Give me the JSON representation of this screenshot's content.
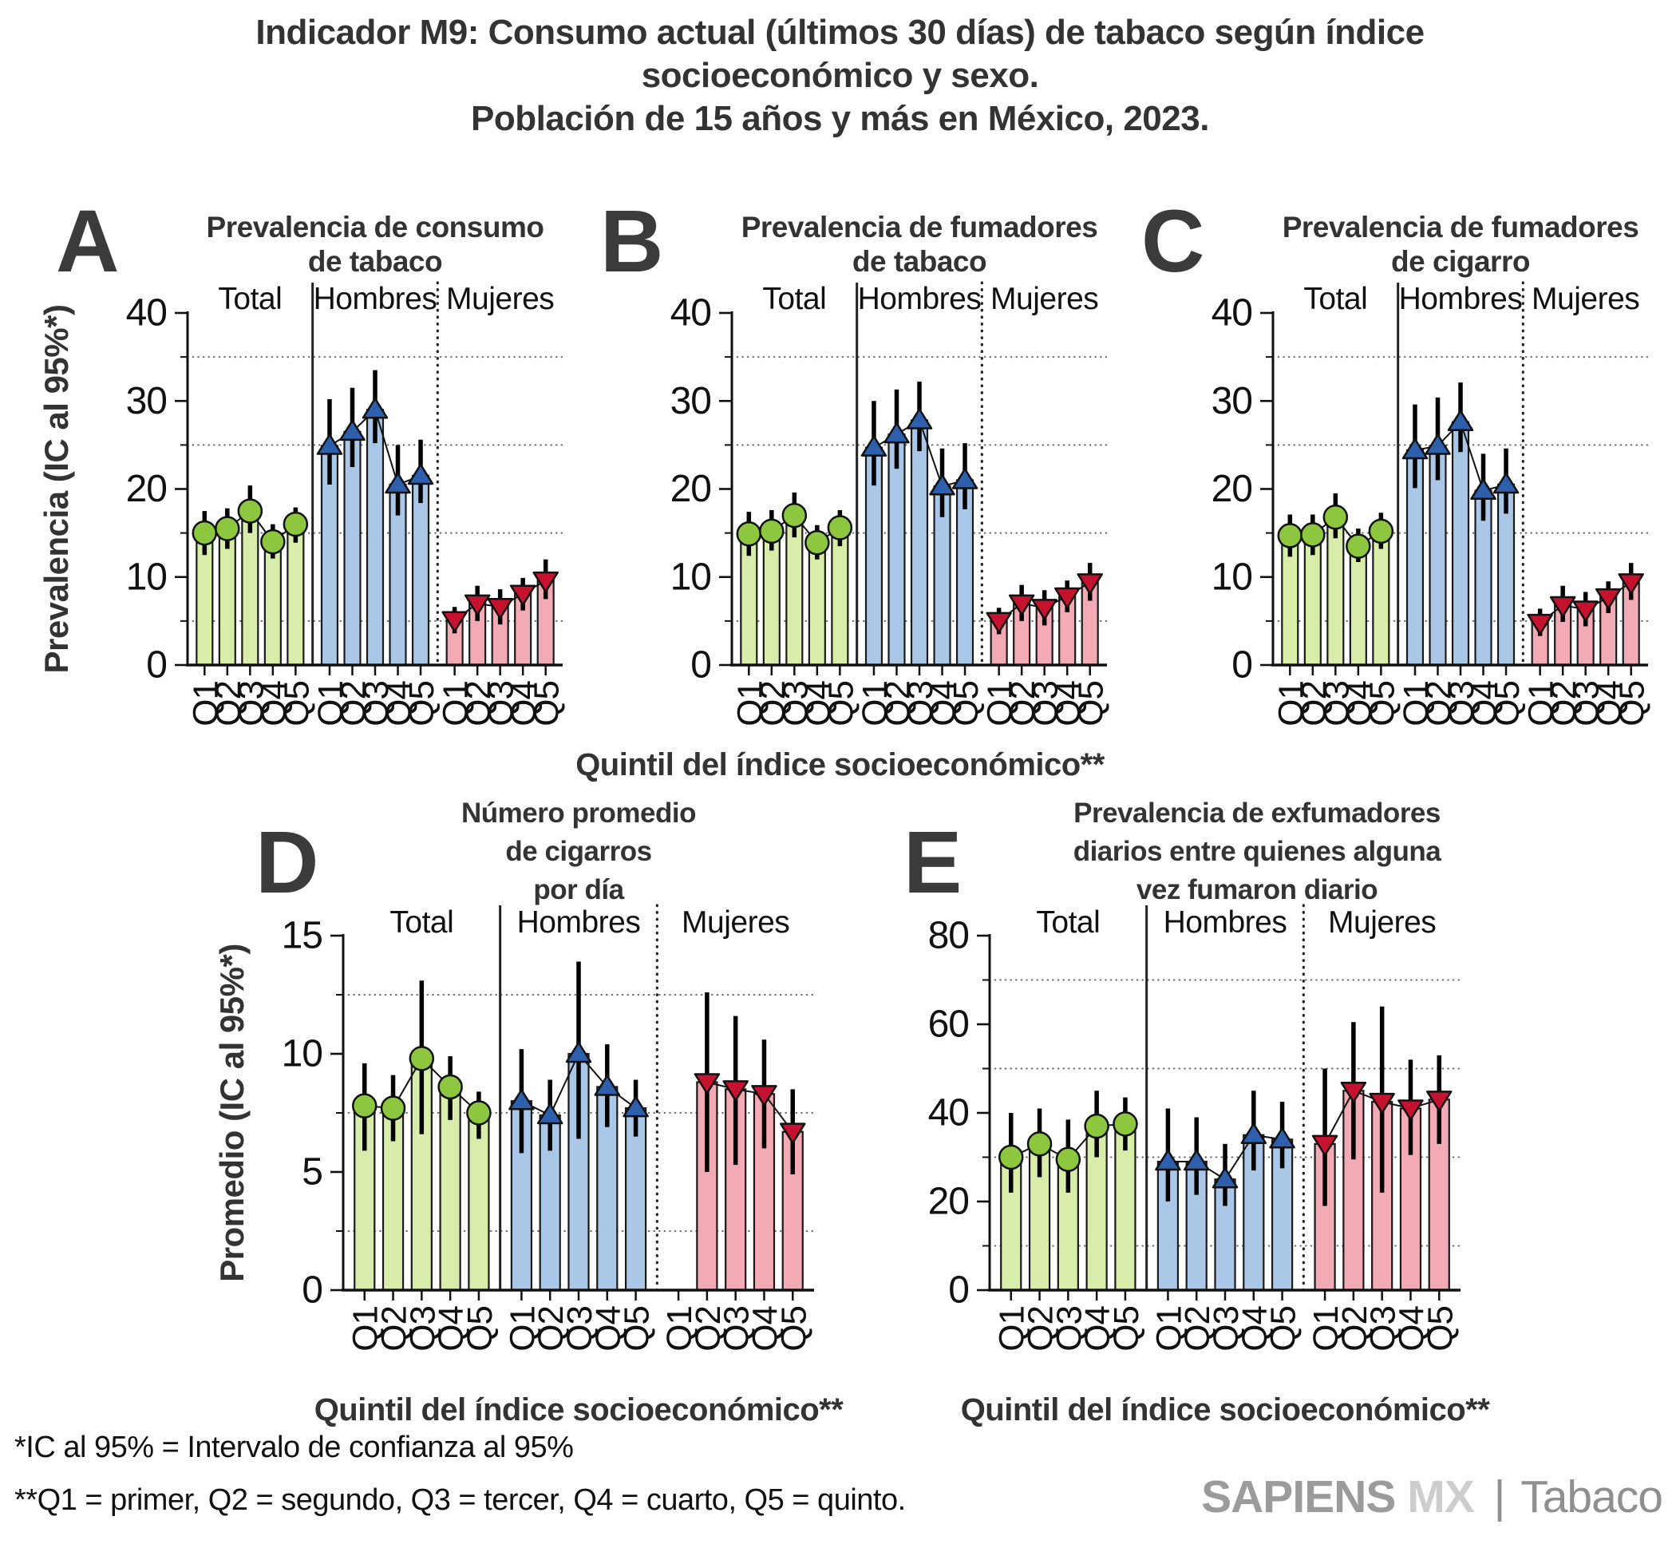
{
  "header": {
    "line1": "Indicador M9: Consumo actual (últimos 30 días) de tabaco según  índice",
    "line2": "socioeconómico y sexo.",
    "line3": "Población de 15 años y más en México, 2023."
  },
  "labels": {
    "xlabel": "Quintil del índice socioeconómico**"
  },
  "footnotes": {
    "ci": "*IC al 95% = Intervalo de confianza al 95%",
    "quintiles": "**Q1 = primer, Q2 = segundo, Q3 = tercer, Q4 = cuarto, Q5 = quinto."
  },
  "logo": {
    "sapiens": "SAPIENS",
    "mx": "MX",
    "separator": "|",
    "tabaco": "Tabaco"
  },
  "colors": {
    "text_dark": "#333333",
    "letter": "#3b3b3b",
    "axis": "#111111",
    "grid": "#666666",
    "total_bar": "#d9edaa",
    "total_marker": "#8dc63f",
    "hombres_bar": "#abc7e7",
    "hombres_marker": "#2d5fad",
    "mujeres_bar": "#f2abb4",
    "mujeres_marker": "#c4122f"
  },
  "chart_data": {
    "type": "bar",
    "categories": [
      "Q1",
      "Q2",
      "Q3",
      "Q4",
      "Q5"
    ],
    "group_names": [
      "Total",
      "Hombres",
      "Mujeres"
    ],
    "legend_position": "none",
    "grid": "minor-dotted-horizontal",
    "panels": [
      {
        "letter": "A",
        "title_lines": [
          "Prevalencia de consumo",
          "de tabaco"
        ],
        "ylabel": "Prevalencia (IC al 95%*)",
        "ylim": [
          0,
          40
        ],
        "yticks": [
          0,
          10,
          20,
          30,
          40
        ],
        "minor_gridlines": [
          5,
          15,
          25,
          35
        ],
        "series": [
          {
            "name": "Total",
            "marker": "circle",
            "values": [
              15.0,
              15.5,
              17.5,
              14.0,
              16.0
            ],
            "ci_low": [
              12.5,
              13.2,
              15.0,
              12.1,
              13.9
            ],
            "ci_high": [
              17.5,
              17.8,
              20.4,
              16.0,
              17.9
            ]
          },
          {
            "name": "Hombres",
            "marker": "triangle-up",
            "values": [
              24.9,
              26.5,
              29.0,
              20.5,
              21.5
            ],
            "ci_low": [
              20.5,
              22.5,
              25.2,
              17.0,
              18.4
            ],
            "ci_high": [
              30.2,
              31.5,
              33.5,
              25.0,
              25.6
            ]
          },
          {
            "name": "Mujeres",
            "marker": "triangle-down",
            "values": [
              5.1,
              7.0,
              6.6,
              8.1,
              9.6
            ],
            "ci_low": [
              3.6,
              5.0,
              4.6,
              6.2,
              7.5
            ],
            "ci_high": [
              6.6,
              9.0,
              8.6,
              9.9,
              12.0
            ]
          }
        ]
      },
      {
        "letter": "B",
        "title_lines": [
          "Prevalencia de fumadores",
          "de tabaco"
        ],
        "ylabel": null,
        "ylim": [
          0,
          40
        ],
        "yticks": [
          0,
          10,
          20,
          30,
          40
        ],
        "minor_gridlines": [
          5,
          15,
          25,
          35
        ],
        "series": [
          {
            "name": "Total",
            "marker": "circle",
            "values": [
              14.9,
              15.2,
              17.0,
              13.9,
              15.6
            ],
            "ci_low": [
              12.4,
              13.0,
              14.5,
              12.0,
              13.5
            ],
            "ci_high": [
              17.4,
              17.6,
              19.6,
              15.9,
              17.6
            ]
          },
          {
            "name": "Hombres",
            "marker": "triangle-up",
            "values": [
              24.7,
              26.2,
              27.8,
              20.3,
              21.0
            ],
            "ci_low": [
              20.4,
              22.3,
              24.3,
              16.8,
              17.7
            ],
            "ci_high": [
              30.0,
              31.3,
              32.2,
              24.6,
              25.2
            ]
          },
          {
            "name": "Mujeres",
            "marker": "triangle-down",
            "values": [
              5.0,
              7.0,
              6.5,
              7.8,
              9.4
            ],
            "ci_low": [
              3.5,
              5.0,
              4.5,
              6.0,
              7.3
            ],
            "ci_high": [
              6.5,
              9.1,
              8.5,
              9.6,
              11.6
            ]
          }
        ]
      },
      {
        "letter": "C",
        "title_lines": [
          "Prevalencia de fumadores",
          "de cigarro"
        ],
        "ylabel": null,
        "ylim": [
          0,
          40
        ],
        "yticks": [
          0,
          10,
          20,
          30,
          40
        ],
        "minor_gridlines": [
          5,
          15,
          25,
          35
        ],
        "series": [
          {
            "name": "Total",
            "marker": "circle",
            "values": [
              14.7,
              14.8,
              16.8,
              13.5,
              15.2
            ],
            "ci_low": [
              12.3,
              12.5,
              14.4,
              11.7,
              13.2
            ],
            "ci_high": [
              17.1,
              17.1,
              19.5,
              15.5,
              17.3
            ]
          },
          {
            "name": "Hombres",
            "marker": "triangle-up",
            "values": [
              24.4,
              24.9,
              27.6,
              19.8,
              20.5
            ],
            "ci_low": [
              20.1,
              21.0,
              24.2,
              16.4,
              17.2
            ],
            "ci_high": [
              29.6,
              30.4,
              32.1,
              24.0,
              24.6
            ]
          },
          {
            "name": "Mujeres",
            "marker": "triangle-down",
            "values": [
              4.8,
              6.8,
              6.3,
              7.7,
              9.4
            ],
            "ci_low": [
              3.3,
              4.9,
              4.4,
              5.9,
              7.4
            ],
            "ci_high": [
              6.4,
              9.0,
              8.3,
              9.5,
              11.6
            ]
          }
        ]
      },
      {
        "letter": "D",
        "title_lines": [
          "Número promedio",
          "de cigarros",
          "por día"
        ],
        "ylabel": "Promedio (IC al 95%*)",
        "ylim": [
          0,
          15
        ],
        "yticks": [
          0,
          5,
          10,
          15
        ],
        "minor_gridlines": [
          2.5,
          7.5,
          12.5
        ],
        "series": [
          {
            "name": "Total",
            "marker": "circle",
            "values": [
              7.8,
              7.7,
              9.8,
              8.6,
              7.5
            ],
            "ci_low": [
              5.9,
              6.3,
              6.6,
              7.2,
              6.4
            ],
            "ci_high": [
              9.6,
              9.1,
              13.1,
              9.9,
              8.4
            ]
          },
          {
            "name": "Hombres",
            "marker": "triangle-up",
            "values": [
              8.0,
              7.4,
              10.0,
              8.6,
              7.7
            ],
            "ci_low": [
              5.8,
              5.9,
              6.4,
              6.9,
              6.5
            ],
            "ci_high": [
              10.2,
              8.9,
              13.9,
              10.4,
              8.9
            ]
          },
          {
            "name": "Mujeres",
            "marker": "triangle-down",
            "values": [
              null,
              8.8,
              8.5,
              8.3,
              6.7
            ],
            "ci_low": [
              null,
              5.0,
              5.3,
              6.0,
              4.9
            ],
            "ci_high": [
              null,
              12.6,
              11.6,
              10.6,
              8.5
            ]
          }
        ]
      },
      {
        "letter": "E",
        "title_lines": [
          "Prevalencia de exfumadores",
          "diarios entre quienes alguna",
          "vez fumaron diario"
        ],
        "ylabel": null,
        "ylim": [
          0,
          80
        ],
        "yticks": [
          0,
          20,
          40,
          60,
          80
        ],
        "minor_gridlines": [
          10,
          30,
          50,
          70
        ],
        "series": [
          {
            "name": "Total",
            "marker": "circle",
            "values": [
              30.0,
              33.0,
              29.5,
              37.0,
              37.5
            ],
            "ci_low": [
              22.0,
              25.5,
              22.0,
              30.0,
              31.5
            ],
            "ci_high": [
              40.0,
              41.0,
              38.5,
              45.0,
              43.5
            ]
          },
          {
            "name": "Hombres",
            "marker": "triangle-up",
            "values": [
              29.0,
              29.0,
              25.0,
              35.0,
              34.0
            ],
            "ci_low": [
              20.0,
              21.5,
              19.0,
              27.0,
              27.5
            ],
            "ci_high": [
              41.0,
              39.0,
              33.0,
              45.0,
              42.5
            ]
          },
          {
            "name": "Mujeres",
            "marker": "triangle-down",
            "values": [
              33.0,
              45.0,
              42.5,
              41.0,
              43.0
            ],
            "ci_low": [
              19.0,
              29.5,
              22.0,
              30.5,
              33.0
            ],
            "ci_high": [
              50.0,
              60.5,
              64.0,
              52.0,
              53.0
            ]
          }
        ]
      }
    ]
  }
}
